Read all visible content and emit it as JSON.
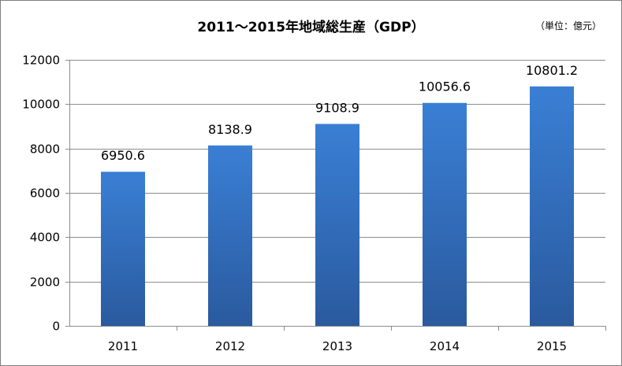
{
  "chart_data": {
    "type": "bar",
    "title": "2011～2015年地域総生産（GDP）",
    "unit_note": "（単位：億元）",
    "xlabel": "",
    "ylabel": "",
    "categories": [
      "2011",
      "2012",
      "2013",
      "2014",
      "2015"
    ],
    "values": [
      6950.6,
      8138.9,
      9108.9,
      10056.6,
      10801.2
    ],
    "value_labels": [
      "6950.6",
      "8138.9",
      "9108.9",
      "10056.6",
      "10801.2"
    ],
    "ylim": [
      0,
      12000
    ],
    "yticks": [
      0,
      2000,
      4000,
      6000,
      8000,
      10000,
      12000
    ],
    "ytick_labels": [
      "0",
      "2000",
      "4000",
      "6000",
      "8000",
      "10000",
      "12000"
    ],
    "grid": true,
    "legend": "none",
    "bar_color_top": "#3a7fd5",
    "bar_color_bottom": "#2a5a9e",
    "grid_color": "#8c8c8c"
  }
}
